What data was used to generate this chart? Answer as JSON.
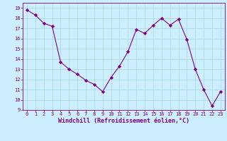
{
  "x": [
    0,
    1,
    2,
    3,
    4,
    5,
    6,
    7,
    8,
    9,
    10,
    11,
    12,
    13,
    14,
    15,
    16,
    17,
    18,
    19,
    20,
    21,
    22,
    23
  ],
  "y": [
    18.8,
    18.3,
    17.5,
    17.2,
    13.7,
    13.0,
    12.5,
    11.9,
    11.5,
    10.8,
    12.2,
    13.3,
    14.7,
    16.9,
    16.5,
    17.3,
    18.0,
    17.3,
    17.9,
    15.9,
    13.0,
    11.0,
    9.4,
    10.8
  ],
  "line_color": "#800080",
  "marker": "D",
  "marker_size": 2.2,
  "bg_color": "#cceeff",
  "grid_color": "#aadddd",
  "xlabel": "Windchill (Refroidissement éolien,°C)",
  "ylabel": "",
  "ylim": [
    9,
    19.5
  ],
  "xlim": [
    -0.5,
    23.5
  ],
  "xticks": [
    0,
    1,
    2,
    3,
    4,
    5,
    6,
    7,
    8,
    9,
    10,
    11,
    12,
    13,
    14,
    15,
    16,
    17,
    18,
    19,
    20,
    21,
    22,
    23
  ],
  "yticks": [
    9,
    10,
    11,
    12,
    13,
    14,
    15,
    16,
    17,
    18,
    19
  ],
  "tick_color": "#800080",
  "label_color": "#800080",
  "tick_fontsize": 5.0,
  "xlabel_fontsize": 6.0
}
